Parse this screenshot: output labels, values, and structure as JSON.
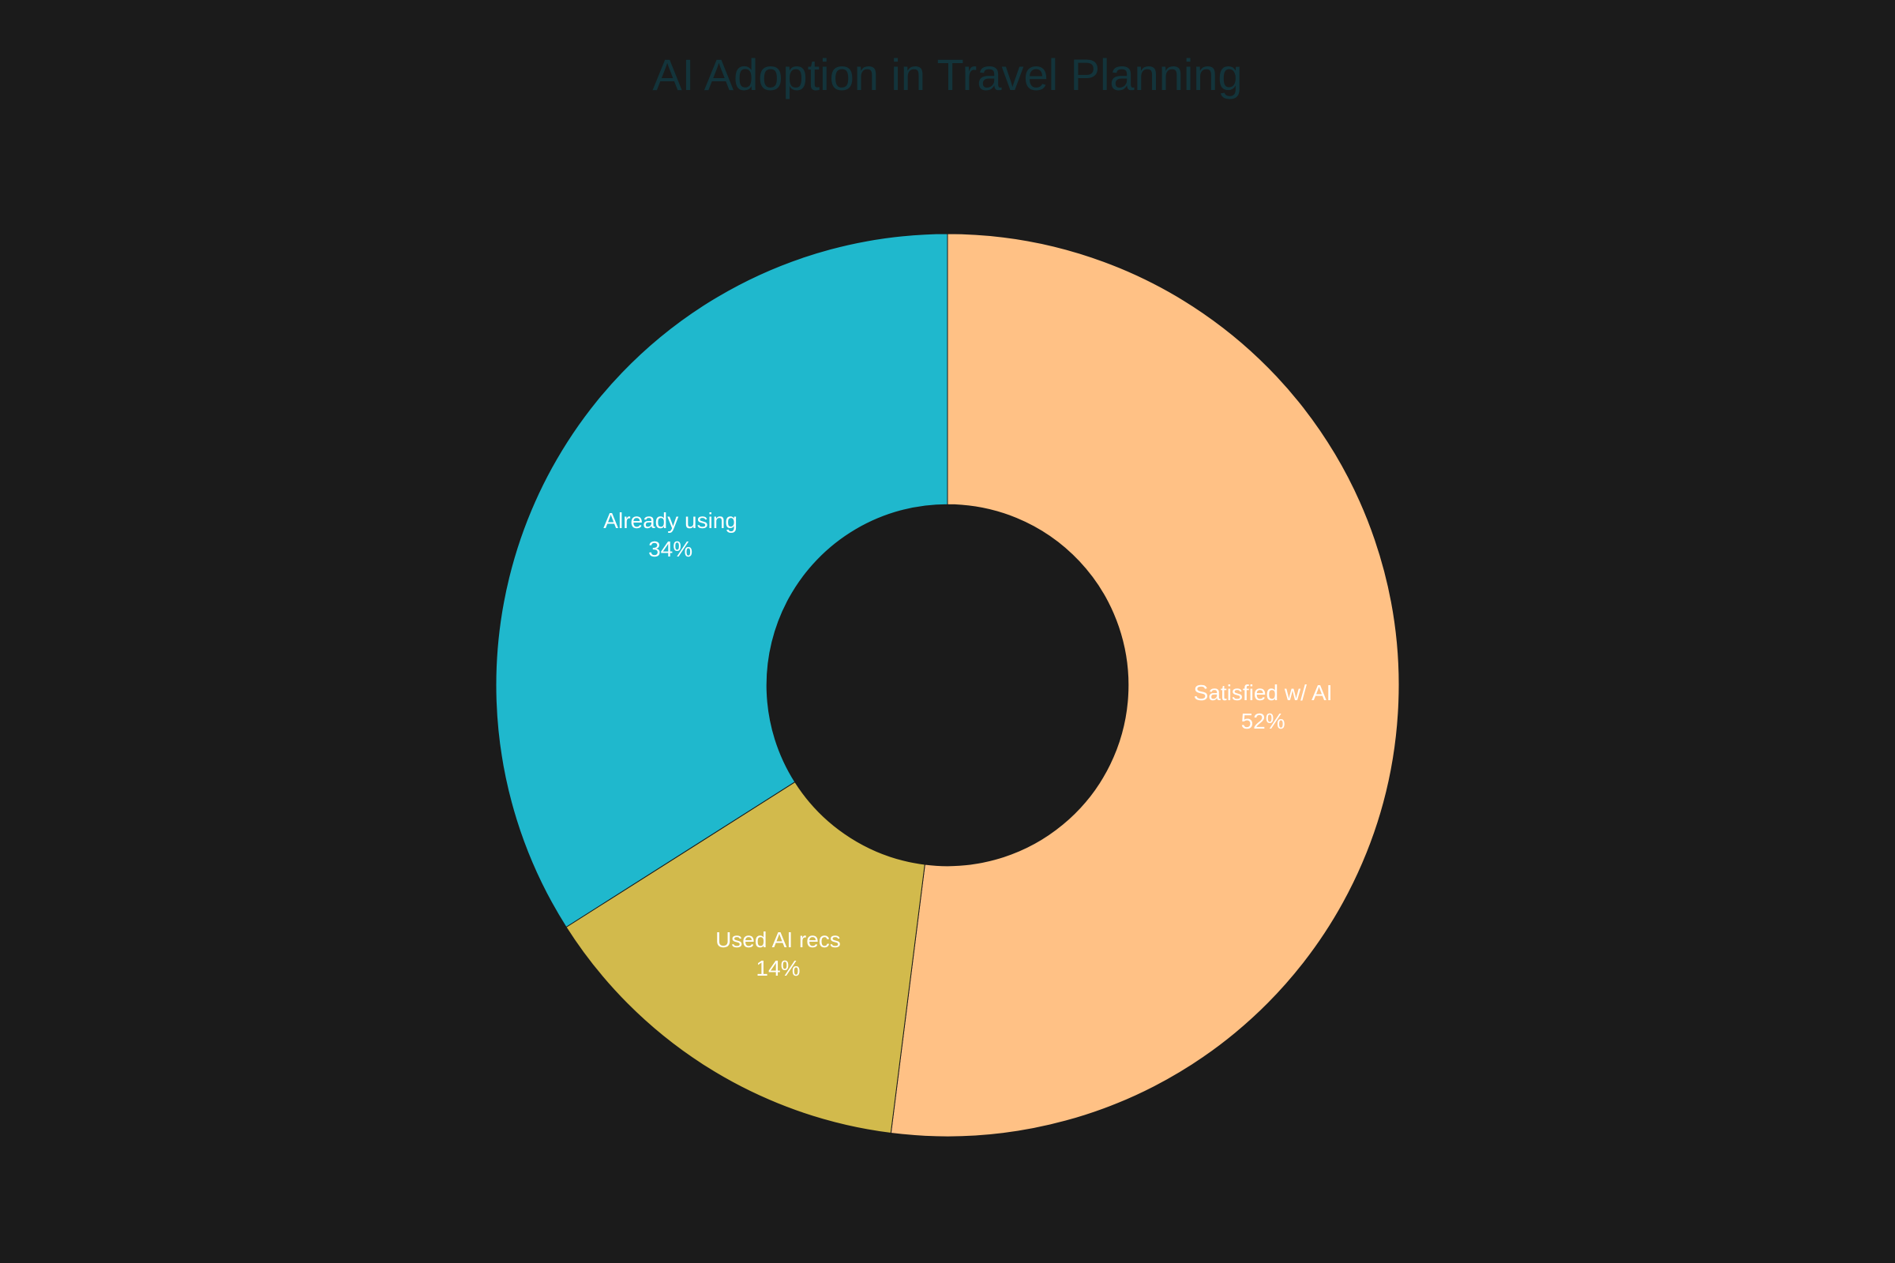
{
  "chart_data": {
    "type": "pie",
    "title": "AI Adoption in Travel Planning",
    "hole": 0.4,
    "direction": "clockwise",
    "start_angle": "top",
    "slices": [
      {
        "label": "Satisfied w/ AI",
        "value": 52,
        "percent_label": "52%",
        "color": "#ffc185"
      },
      {
        "label": "Used AI recs",
        "value": 14,
        "percent_label": "14%",
        "color": "#d2ba4c"
      },
      {
        "label": "Already using",
        "value": 34,
        "percent_label": "34%",
        "color": "#1fb8cd"
      }
    ]
  },
  "colors": {
    "background": "#1b1b1b",
    "title": "#13343b",
    "label": "#ffffff"
  }
}
